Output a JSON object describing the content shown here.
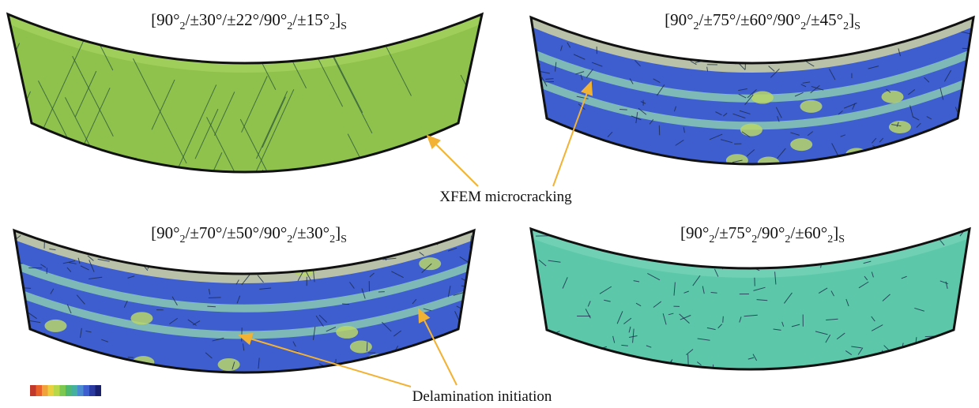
{
  "panels": [
    {
      "title": [
        "[90°",
        "2",
        "/±30°/±22°/90°",
        "2",
        "/±15°",
        "2",
        "]",
        "S"
      ]
    },
    {
      "title": [
        "[90°",
        "2",
        "/±75°/±60°/90°",
        "2",
        "/±45°",
        "2",
        "]",
        "S"
      ]
    },
    {
      "title": [
        "[90°",
        "2",
        "/±70°/±50°/90°",
        "2",
        "/±30°",
        "2",
        "]",
        "S"
      ]
    },
    {
      "title": [
        "[90°",
        "2",
        "/±75°",
        "2",
        "/90°",
        "2",
        "/±60°",
        "2",
        "]",
        "S"
      ]
    }
  ],
  "annotations": [
    "XFEM microcracking",
    "Delamination initiation"
  ]
}
